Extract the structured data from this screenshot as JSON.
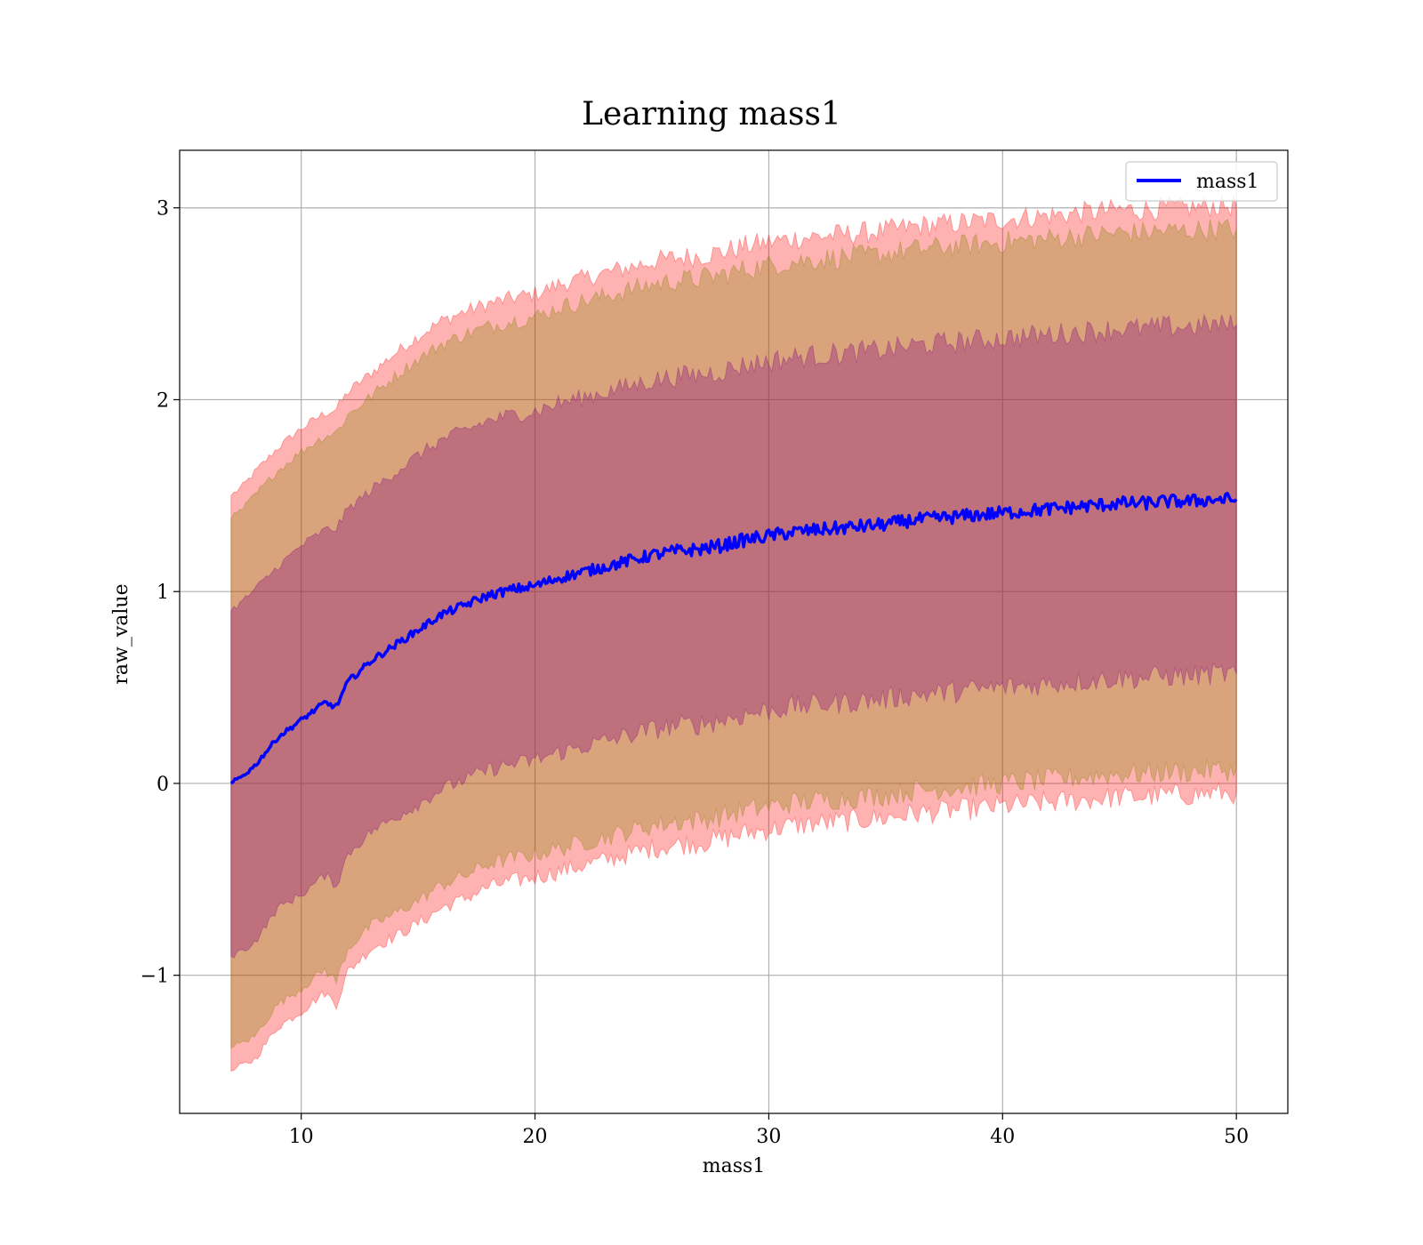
{
  "chart_data": {
    "type": "area",
    "title": "Learning mass1",
    "xlabel": "mass1",
    "ylabel": "raw_value",
    "xlim": [
      4.8,
      52.2
    ],
    "ylim": [
      -1.72,
      3.3
    ],
    "x_ticks": [
      10,
      20,
      30,
      40,
      50
    ],
    "x_tick_labels": [
      "10",
      "20",
      "30",
      "40",
      "50"
    ],
    "y_ticks": [
      -1,
      0,
      1,
      2,
      3
    ],
    "y_tick_labels": [
      "−1",
      "0",
      "1",
      "2",
      "3"
    ],
    "grid": true,
    "legend": {
      "placement": "top-right",
      "entries": [
        "mass1"
      ]
    },
    "x_range": [
      7,
      50
    ],
    "series": [
      {
        "name": "mass1",
        "role": "line",
        "color": "#0000ff",
        "x": [
          7,
          7.5,
          8,
          9,
          10,
          11,
          11.5,
          12,
          13,
          14,
          15,
          16,
          17,
          18,
          19,
          20,
          21,
          22,
          23,
          24,
          25,
          26,
          27,
          28,
          29,
          30,
          31,
          32,
          33,
          34,
          35,
          36,
          37,
          38,
          39,
          40,
          41,
          42,
          43,
          44,
          45,
          46,
          47,
          48,
          49,
          50
        ],
        "y": [
          0.0,
          0.04,
          0.09,
          0.24,
          0.33,
          0.42,
          0.4,
          0.53,
          0.64,
          0.72,
          0.8,
          0.88,
          0.93,
          0.98,
          1.01,
          1.03,
          1.07,
          1.1,
          1.13,
          1.16,
          1.19,
          1.21,
          1.22,
          1.24,
          1.27,
          1.29,
          1.31,
          1.32,
          1.33,
          1.34,
          1.35,
          1.37,
          1.38,
          1.39,
          1.4,
          1.41,
          1.42,
          1.43,
          1.44,
          1.45,
          1.46,
          1.46,
          1.47,
          1.47,
          1.48,
          1.48
        ]
      }
    ],
    "bands": [
      {
        "color": "#ff0000",
        "opacity": 0.3,
        "x": [
          7,
          7.5,
          8,
          9,
          10,
          11,
          11.5,
          12,
          13,
          14,
          15,
          16,
          17,
          18,
          19,
          20,
          21,
          22,
          23,
          24,
          25,
          26,
          27,
          28,
          29,
          30,
          31,
          32,
          33,
          34,
          35,
          36,
          37,
          38,
          39,
          40,
          41,
          42,
          43,
          44,
          45,
          46,
          47,
          48,
          49,
          50
        ],
        "upper": [
          1.5,
          1.55,
          1.62,
          1.75,
          1.85,
          1.93,
          1.95,
          2.04,
          2.14,
          2.24,
          2.33,
          2.41,
          2.46,
          2.5,
          2.53,
          2.55,
          2.6,
          2.63,
          2.66,
          2.69,
          2.72,
          2.74,
          2.75,
          2.77,
          2.8,
          2.82,
          2.84,
          2.85,
          2.86,
          2.87,
          2.88,
          2.9,
          2.91,
          2.92,
          2.93,
          2.94,
          2.95,
          2.96,
          2.97,
          2.98,
          2.99,
          2.99,
          3.0,
          3.0,
          3.01,
          3.01
        ],
        "lower": [
          -1.5,
          -1.47,
          -1.44,
          -1.27,
          -1.19,
          -1.09,
          -1.15,
          -0.98,
          -0.86,
          -0.8,
          -0.73,
          -0.65,
          -0.6,
          -0.54,
          -0.51,
          -0.49,
          -0.46,
          -0.43,
          -0.4,
          -0.37,
          -0.34,
          -0.32,
          -0.31,
          -0.29,
          -0.26,
          -0.24,
          -0.22,
          -0.21,
          -0.2,
          -0.19,
          -0.18,
          -0.16,
          -0.15,
          -0.14,
          -0.13,
          -0.12,
          -0.11,
          -0.1,
          -0.09,
          -0.08,
          -0.07,
          -0.07,
          -0.06,
          -0.06,
          -0.05,
          -0.05
        ]
      },
      {
        "color": "#808000",
        "opacity": 0.3,
        "x": [
          7,
          7.5,
          8,
          9,
          10,
          11,
          11.5,
          12,
          13,
          14,
          15,
          16,
          17,
          18,
          19,
          20,
          21,
          22,
          23,
          24,
          25,
          26,
          27,
          28,
          29,
          30,
          31,
          32,
          33,
          34,
          35,
          36,
          37,
          38,
          39,
          40,
          41,
          42,
          43,
          44,
          45,
          46,
          47,
          48,
          49,
          50
        ],
        "upper": [
          1.38,
          1.43,
          1.5,
          1.63,
          1.73,
          1.81,
          1.83,
          1.92,
          2.02,
          2.12,
          2.21,
          2.29,
          2.34,
          2.38,
          2.41,
          2.43,
          2.48,
          2.51,
          2.54,
          2.57,
          2.6,
          2.62,
          2.63,
          2.65,
          2.68,
          2.7,
          2.72,
          2.73,
          2.74,
          2.75,
          2.76,
          2.78,
          2.79,
          2.8,
          2.81,
          2.82,
          2.83,
          2.84,
          2.85,
          2.86,
          2.87,
          2.87,
          2.88,
          2.88,
          2.89,
          2.89
        ],
        "lower": [
          -1.38,
          -1.35,
          -1.32,
          -1.15,
          -1.07,
          -0.97,
          -1.03,
          -0.86,
          -0.74,
          -0.68,
          -0.61,
          -0.53,
          -0.48,
          -0.42,
          -0.39,
          -0.37,
          -0.34,
          -0.31,
          -0.28,
          -0.25,
          -0.22,
          -0.2,
          -0.19,
          -0.17,
          -0.14,
          -0.12,
          -0.1,
          -0.09,
          -0.08,
          -0.07,
          -0.06,
          -0.04,
          -0.03,
          -0.02,
          -0.01,
          0.0,
          0.01,
          0.02,
          0.03,
          0.04,
          0.05,
          0.05,
          0.06,
          0.06,
          0.07,
          0.07
        ]
      },
      {
        "color": "#800080",
        "opacity": 0.3,
        "x": [
          7,
          7.5,
          8,
          9,
          10,
          11,
          11.5,
          12,
          13,
          14,
          15,
          16,
          17,
          18,
          19,
          20,
          21,
          22,
          23,
          24,
          25,
          26,
          27,
          28,
          29,
          30,
          31,
          32,
          33,
          34,
          35,
          36,
          37,
          38,
          39,
          40,
          41,
          42,
          43,
          44,
          45,
          46,
          47,
          48,
          49,
          50
        ],
        "upper": [
          0.9,
          0.95,
          1.01,
          1.13,
          1.24,
          1.32,
          1.33,
          1.43,
          1.53,
          1.62,
          1.71,
          1.79,
          1.84,
          1.89,
          1.92,
          1.94,
          1.98,
          2.01,
          2.04,
          2.07,
          2.1,
          2.12,
          2.13,
          2.15,
          2.18,
          2.2,
          2.22,
          2.23,
          2.24,
          2.25,
          2.26,
          2.28,
          2.29,
          2.3,
          2.31,
          2.32,
          2.33,
          2.34,
          2.35,
          2.36,
          2.37,
          2.37,
          2.38,
          2.38,
          2.39,
          2.39
        ],
        "lower": [
          -0.9,
          -0.87,
          -0.83,
          -0.65,
          -0.58,
          -0.48,
          -0.53,
          -0.37,
          -0.25,
          -0.18,
          -0.11,
          -0.03,
          0.02,
          0.07,
          0.1,
          0.12,
          0.16,
          0.19,
          0.22,
          0.25,
          0.28,
          0.3,
          0.31,
          0.33,
          0.36,
          0.38,
          0.4,
          0.41,
          0.42,
          0.43,
          0.44,
          0.46,
          0.47,
          0.48,
          0.49,
          0.5,
          0.51,
          0.52,
          0.53,
          0.54,
          0.55,
          0.55,
          0.56,
          0.56,
          0.57,
          0.57
        ]
      }
    ]
  }
}
